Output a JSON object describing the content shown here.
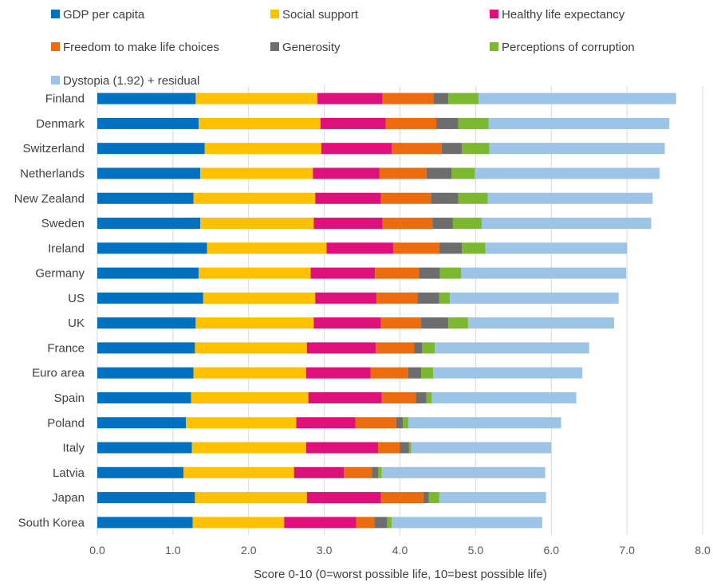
{
  "chart_data": {
    "type": "bar",
    "orientation": "horizontal",
    "stacked": true,
    "categories": [
      "Finland",
      "Denmark",
      "Switzerland",
      "Netherlands",
      "New Zealand",
      "Sweden",
      "Ireland",
      "Germany",
      "US",
      "UK",
      "France",
      "Euro area",
      "Spain",
      "Poland",
      "Italy",
      "Latvia",
      "Japan",
      "South Korea"
    ],
    "series": [
      {
        "name": "GDP per capita",
        "color": "#0070C0",
        "values": [
          1.3,
          1.34,
          1.42,
          1.36,
          1.27,
          1.36,
          1.45,
          1.34,
          1.4,
          1.3,
          1.29,
          1.27,
          1.24,
          1.17,
          1.25,
          1.14,
          1.29,
          1.26
        ]
      },
      {
        "name": "Social support",
        "color": "#FFC000",
        "values": [
          1.61,
          1.61,
          1.54,
          1.49,
          1.61,
          1.5,
          1.58,
          1.48,
          1.48,
          1.56,
          1.48,
          1.49,
          1.55,
          1.46,
          1.51,
          1.46,
          1.48,
          1.21
        ]
      },
      {
        "name": "Healthy life expectancy",
        "color": "#E0107A",
        "values": [
          0.86,
          0.86,
          0.93,
          0.88,
          0.87,
          0.91,
          0.88,
          0.85,
          0.81,
          0.89,
          0.91,
          0.85,
          0.97,
          0.78,
          0.95,
          0.66,
          0.98,
          0.95
        ]
      },
      {
        "name": "Freedom to make life choices",
        "color": "#ED6B0F",
        "values": [
          0.67,
          0.67,
          0.66,
          0.62,
          0.66,
          0.66,
          0.61,
          0.58,
          0.54,
          0.53,
          0.51,
          0.5,
          0.45,
          0.54,
          0.29,
          0.37,
          0.56,
          0.24
        ]
      },
      {
        "name": "Generosity",
        "color": "#6D6D6D",
        "values": [
          0.2,
          0.29,
          0.27,
          0.33,
          0.36,
          0.27,
          0.3,
          0.28,
          0.29,
          0.36,
          0.1,
          0.17,
          0.14,
          0.09,
          0.12,
          0.08,
          0.07,
          0.17
        ]
      },
      {
        "name": "Perceptions of corruption",
        "color": "#7CB82F",
        "values": [
          0.4,
          0.4,
          0.36,
          0.31,
          0.39,
          0.38,
          0.31,
          0.28,
          0.14,
          0.26,
          0.17,
          0.16,
          0.07,
          0.07,
          0.03,
          0.05,
          0.14,
          0.06
        ]
      },
      {
        "name": "Dystopia (1.92) + residual",
        "color": "#9DC3E6",
        "values": [
          2.61,
          2.39,
          2.32,
          2.44,
          2.18,
          2.24,
          1.87,
          2.18,
          2.23,
          1.93,
          2.04,
          1.97,
          1.91,
          2.02,
          1.85,
          2.16,
          1.41,
          1.99
        ]
      }
    ],
    "xlabel": "Score 0-10 (0=worst possible life, 10=best possible life)",
    "xlim": [
      0,
      8
    ],
    "xticks": [
      "0.0",
      "1.0",
      "2.0",
      "3.0",
      "4.0",
      "5.0",
      "6.0",
      "7.0",
      "8.0"
    ],
    "legend_position": "top",
    "grid": "vertical"
  }
}
